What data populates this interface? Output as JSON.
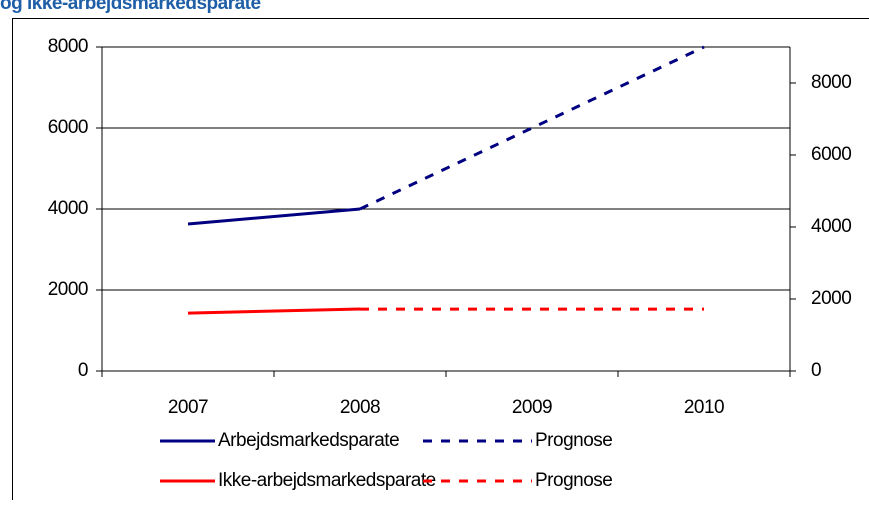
{
  "chart_data": {
    "type": "line",
    "title": "og ikke-arbejdsmarkedsparate",
    "categories": [
      "2007",
      "2008",
      "2009",
      "2010"
    ],
    "series": [
      {
        "name": "Arbejdsmarkedsparate",
        "color": "#000080",
        "values": [
          3630,
          4000,
          null,
          null
        ]
      },
      {
        "name": "Ikke-arbejdsmarkedsparate",
        "color": "#ff0000",
        "values": [
          1430,
          1530,
          null,
          null
        ]
      },
      {
        "name": "Prognose",
        "color": "#000080",
        "dashed": true,
        "axis": "y2",
        "values": [
          null,
          4500,
          6750,
          9000
        ]
      },
      {
        "name": "Prognose",
        "color": "#ff0000",
        "dashed": true,
        "axis": "y2",
        "values": [
          null,
          1720,
          1720,
          1720
        ]
      }
    ],
    "ylim": [
      0,
      8000
    ],
    "yticks": [
      0,
      2000,
      4000,
      6000,
      8000
    ],
    "y2lim": [
      0,
      9000
    ],
    "y2ticks": [
      0,
      2000,
      4000,
      6000,
      8000
    ],
    "grid": true
  }
}
